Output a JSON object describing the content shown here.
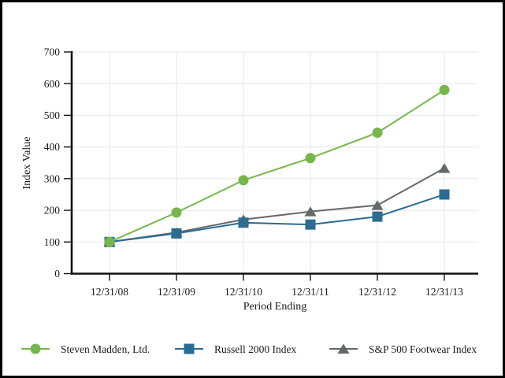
{
  "chart_data": {
    "type": "line",
    "title": "",
    "xlabel": "Period Ending",
    "ylabel": "Index Value",
    "categories": [
      "12/31/08",
      "12/31/09",
      "12/31/10",
      "12/31/11",
      "12/31/12",
      "12/31/13"
    ],
    "series": [
      {
        "name": "Steven Madden, Ltd.",
        "marker": "circle",
        "color": "#76B74B",
        "values": [
          100,
          193,
          295,
          365,
          445,
          580
        ]
      },
      {
        "name": "Russell 2000 Index",
        "marker": "square",
        "color": "#2B6C90",
        "values": [
          100,
          127,
          161,
          155,
          180,
          250
        ]
      },
      {
        "name": "S&P 500 Footwear Index",
        "marker": "triangle",
        "color": "#666769",
        "values": [
          100,
          130,
          171,
          196,
          216,
          333
        ]
      }
    ],
    "y_ticks": [
      0,
      100,
      200,
      300,
      400,
      500,
      600,
      700
    ],
    "ylim": [
      0,
      700
    ],
    "grid": true,
    "legend_position": "bottom"
  },
  "style": {
    "frame_border_color": "#000000",
    "background_color": "#ffffff",
    "grid_color": "#e7e7e7",
    "axis_color": "#111111"
  }
}
